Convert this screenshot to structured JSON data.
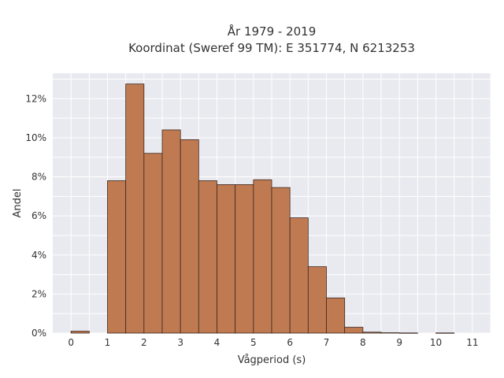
{
  "chart_data": {
    "type": "bar",
    "title": "År 1979 - 2019",
    "subtitle": "Koordinat (Sweref 99 TM): E 351774, N 6213253",
    "xlabel": "Vågperiod (s)",
    "ylabel": "Andel",
    "x_ticks": [
      "0",
      "1",
      "2",
      "3",
      "4",
      "5",
      "6",
      "7",
      "8",
      "9",
      "10",
      "11"
    ],
    "y_ticks": [
      "0%",
      "2%",
      "4%",
      "6%",
      "8%",
      "10%",
      "12%"
    ],
    "xlim": [
      -0.5,
      11.5
    ],
    "ylim": [
      0,
      13.3
    ],
    "bin_width": 0.5,
    "bins": [
      {
        "x0": 0.0,
        "value": 0.1
      },
      {
        "x0": 1.0,
        "value": 7.8
      },
      {
        "x0": 1.5,
        "value": 12.75
      },
      {
        "x0": 2.0,
        "value": 9.2
      },
      {
        "x0": 2.5,
        "value": 10.4
      },
      {
        "x0": 3.0,
        "value": 9.9
      },
      {
        "x0": 3.5,
        "value": 7.8
      },
      {
        "x0": 4.0,
        "value": 7.6
      },
      {
        "x0": 4.5,
        "value": 7.6
      },
      {
        "x0": 5.0,
        "value": 7.85
      },
      {
        "x0": 5.5,
        "value": 7.45
      },
      {
        "x0": 6.0,
        "value": 5.9
      },
      {
        "x0": 6.5,
        "value": 3.4
      },
      {
        "x0": 7.0,
        "value": 1.8
      },
      {
        "x0": 7.5,
        "value": 0.3
      },
      {
        "x0": 8.0,
        "value": 0.05
      },
      {
        "x0": 8.5,
        "value": 0.02
      },
      {
        "x0": 9.0,
        "value": 0.01
      },
      {
        "x0": 10.0,
        "value": 0.01
      }
    ],
    "grid": true,
    "bar_color": "#c07a52",
    "plot_background": "#e9e9f0"
  }
}
